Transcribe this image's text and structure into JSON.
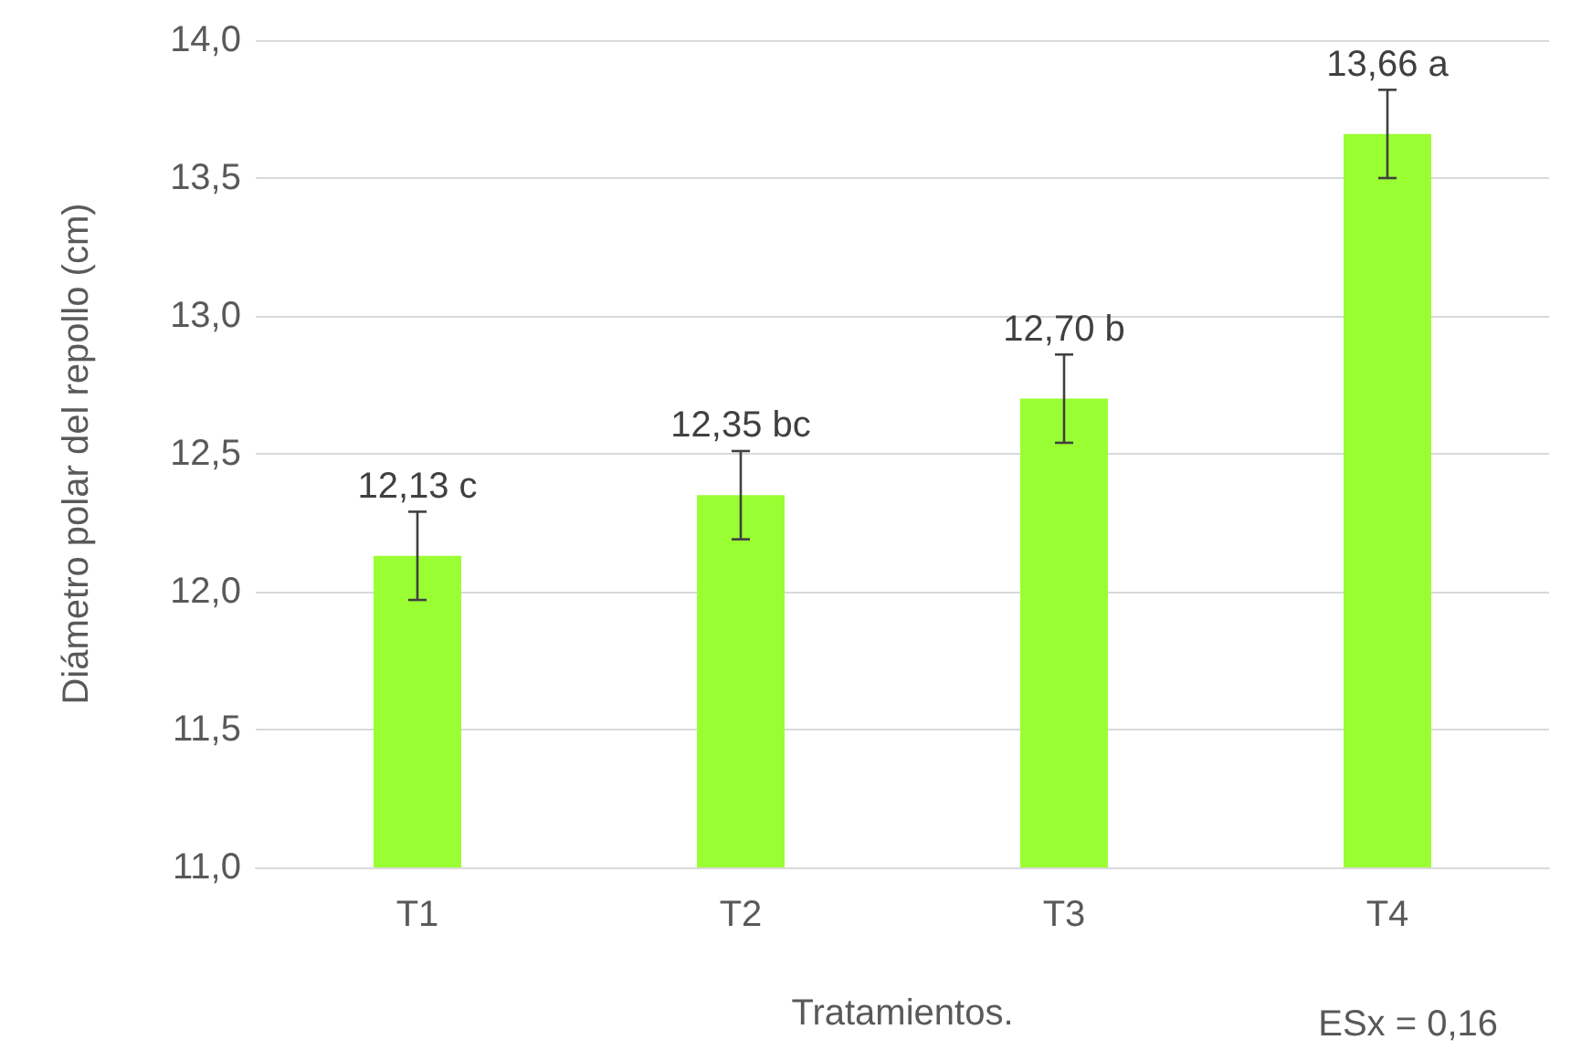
{
  "chart_data": {
    "type": "bar",
    "xlabel": "Tratamientos.",
    "ylabel": "Diámetro polar del repollo (cm)",
    "categories": [
      "T1",
      "T2",
      "T3",
      "T4"
    ],
    "values": [
      12.13,
      12.35,
      12.7,
      13.66
    ],
    "errors": [
      0.16,
      0.16,
      0.16,
      0.16
    ],
    "value_labels": [
      "12,13 c",
      "12,35 bc",
      "12,70 b",
      "13,66 a"
    ],
    "color": "#99ff33",
    "ylim": [
      11,
      14
    ],
    "yticks": [
      {
        "value": 11,
        "label": "11,0"
      },
      {
        "value": 11.5,
        "label": "11,5"
      },
      {
        "value": 12,
        "label": "12,0"
      },
      {
        "value": 12.5,
        "label": "12,5"
      },
      {
        "value": 13,
        "label": "13,0"
      },
      {
        "value": 13.5,
        "label": "13,5"
      },
      {
        "value": 14,
        "label": "14,0"
      }
    ],
    "grid": "y",
    "annotations": [
      "ESx = 0,16"
    ]
  }
}
